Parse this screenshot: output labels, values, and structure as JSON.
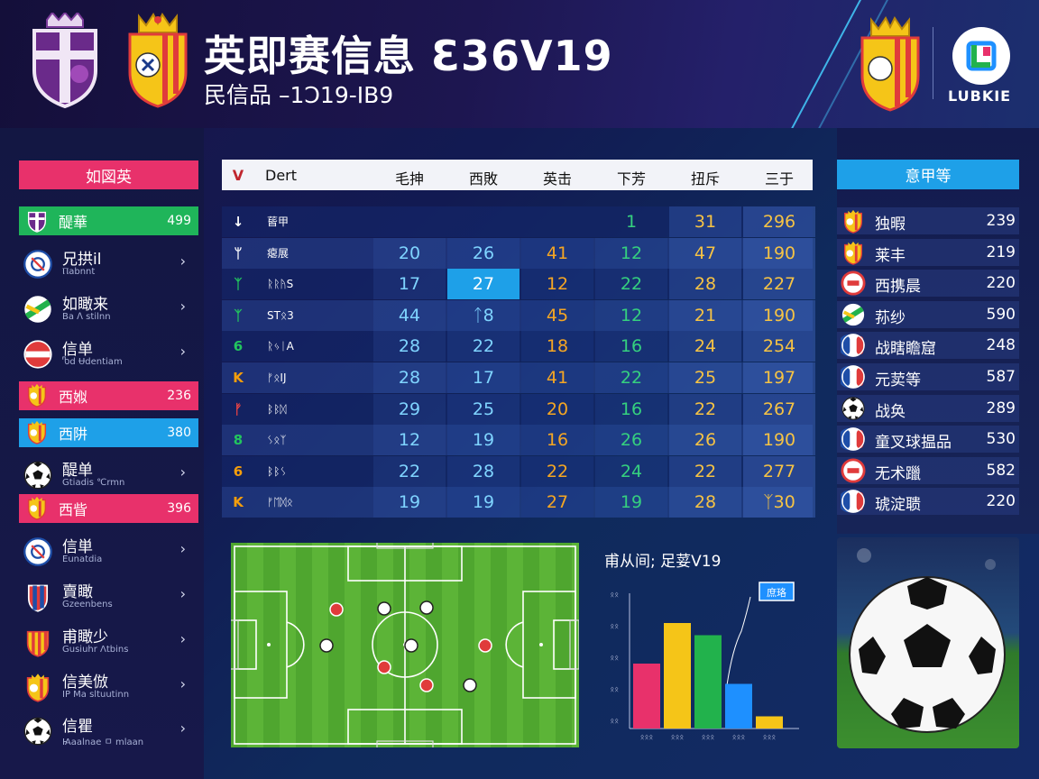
{
  "header": {
    "title": "英即赛信息 Ɛ36V19",
    "subtitle": "民信品 –1Ↄ19-ΙB9",
    "brand_name": "LUBKIE"
  },
  "left_panel": {
    "header_label": "如図英",
    "items": [
      {
        "type": "highlight",
        "color": "#1fb55a",
        "name": "醍華",
        "value": "499"
      },
      {
        "type": "row",
        "name": "兄拱il",
        "sub": "Ⲡabnnt"
      },
      {
        "type": "row",
        "name": "如瞰来",
        "sub": "Ba ⴷ stilnn"
      },
      {
        "type": "row",
        "name": "信单",
        "sub": "Ⴊd Ʉdentiam"
      },
      {
        "type": "highlight",
        "color": "#e8316b",
        "name": "西娰",
        "value": "236"
      },
      {
        "type": "highlight",
        "color": "#1ea0e8",
        "name": "西阱",
        "value": "380"
      },
      {
        "type": "row",
        "name": "醍单",
        "sub": "Gtiadis ℃rmn"
      },
      {
        "type": "highlight",
        "color": "#e8316b",
        "name": "西眥",
        "value": "396"
      },
      {
        "type": "row",
        "name": "信単",
        "sub": "Eunatdia"
      },
      {
        "type": "row",
        "name": "賣瞰",
        "sub": "Gzeenbens"
      },
      {
        "type": "row",
        "name": "甫瞰少",
        "sub": "Gusiuhr Ʌtbins"
      },
      {
        "type": "row",
        "name": "信美倣",
        "sub": "ΙΡ Μa sltuutinn"
      },
      {
        "type": "row",
        "name": "信瞿",
        "sub": "Ꙗaalnae ㅁ mlaan"
      }
    ],
    "chevron": "›"
  },
  "table": {
    "columns": [
      "Dert",
      "毛抻",
      "西敗",
      "英击",
      "下芳",
      "扭斥",
      "三于"
    ],
    "head_icon": "V",
    "rows": [
      {
        "key": "↓",
        "key_color": "#ffffff",
        "label": "蒈甲",
        "c1": "",
        "c2": "",
        "c3": "",
        "c4": "1",
        "c5": "31",
        "c6": "296"
      },
      {
        "key": "ᛘ",
        "key_color": "#ffffff",
        "label": "瘪展",
        "c1": "20",
        "c2": "26",
        "c3": "41",
        "c4": "12",
        "c5": "47",
        "c6": "190"
      },
      {
        "key": "ᛉ",
        "key_color": "#22c55e",
        "label": "ᚱᚱᚤS",
        "c1": "17",
        "c2": "27",
        "c3": "12",
        "c4": "22",
        "c5": "28",
        "c6": "227"
      },
      {
        "key": "ᛉ",
        "key_color": "#22c55e",
        "label": "STᛟ3",
        "c1": "44",
        "c2": "ᛏ8",
        "c3": "45",
        "c4": "12",
        "c5": "21",
        "c6": "190"
      },
      {
        "key": "6",
        "key_color": "#22c55e",
        "label": "ᚱᛃᛁA",
        "c1": "28",
        "c2": "22",
        "c3": "18",
        "c4": "16",
        "c5": "24",
        "c6": "254"
      },
      {
        "key": "K",
        "key_color": "#f59e0b",
        "label": "ᚠᛟIJ",
        "c1": "28",
        "c2": "17",
        "c3": "41",
        "c4": "22",
        "c5": "25",
        "c6": "197"
      },
      {
        "key": "ᚠ",
        "key_color": "#ef4444",
        "label": "ᛒᛒᛞ",
        "c1": "29",
        "c2": "25",
        "c3": "20",
        "c4": "16",
        "c5": "22",
        "c6": "267"
      },
      {
        "key": "8",
        "key_color": "#22c55e",
        "label": "ᛊᛟᛉ",
        "c1": "12",
        "c2": "19",
        "c3": "16",
        "c4": "26",
        "c5": "26",
        "c6": "190"
      },
      {
        "key": "6",
        "key_color": "#f59e0b",
        "label": "ᛒᛒᛊ",
        "c1": "22",
        "c2": "28",
        "c3": "22",
        "c4": "24",
        "c5": "22",
        "c6": "277"
      },
      {
        "key": "K",
        "key_color": "#f59e0b",
        "label": "ᚠᛖᛞᛟ",
        "c1": "19",
        "c2": "19",
        "c3": "27",
        "c4": "19",
        "c5": "28",
        "c6": "ᛉ30"
      }
    ]
  },
  "right_panel": {
    "header_label": "意甲等",
    "items": [
      {
        "icon": "crest-yellow",
        "name": "独暇",
        "value": "239"
      },
      {
        "icon": "crest-yellow",
        "name": "莱丰",
        "value": "219"
      },
      {
        "icon": "badge-red",
        "name": "西携晨",
        "value": "220"
      },
      {
        "icon": "badge-green",
        "name": "荪纱",
        "value": "590"
      },
      {
        "icon": "flag-fr",
        "name": "战瞎瞻窟",
        "value": "248"
      },
      {
        "icon": "flag-fr",
        "name": "元荬等",
        "value": "587"
      },
      {
        "icon": "ball",
        "name": "战奂",
        "value": "289"
      },
      {
        "icon": "flag-fr",
        "name": "童叉球揾品",
        "value": "530"
      },
      {
        "icon": "badge-red",
        "name": "无术躐",
        "value": "582"
      },
      {
        "icon": "flag-fr",
        "name": "琥淀聩",
        "value": "220"
      }
    ]
  },
  "chart_data": {
    "type": "bar",
    "title": "甫从间; 足荽V19",
    "legend_label": "庶珞",
    "y_tick_labels": [
      "ᛟᛟ",
      "ᛟᛟ",
      "ᛟᛟ",
      "ᛟᛟ",
      "ᛟᛟ"
    ],
    "categories": [
      "ᛟᛟᛟ",
      "ᛟᛟᛟ",
      "ᛟᛟᛟ",
      "ᛟᛟᛟ",
      "ᛟᛟᛟ"
    ],
    "values": [
      48,
      78,
      69,
      33,
      9
    ],
    "colors": [
      "#e8316b",
      "#f5c518",
      "#22b24c",
      "#1e90ff",
      "#f5c518"
    ],
    "ylim": [
      0,
      100
    ]
  },
  "colors": {
    "accent_pink": "#e8316b",
    "accent_blue": "#1ea0e8",
    "accent_green": "#1fb55a",
    "value_blue": "#7fd4ff",
    "value_orange": "#f5a623",
    "value_green": "#35d07f",
    "value_yellow": "#f6c344"
  }
}
